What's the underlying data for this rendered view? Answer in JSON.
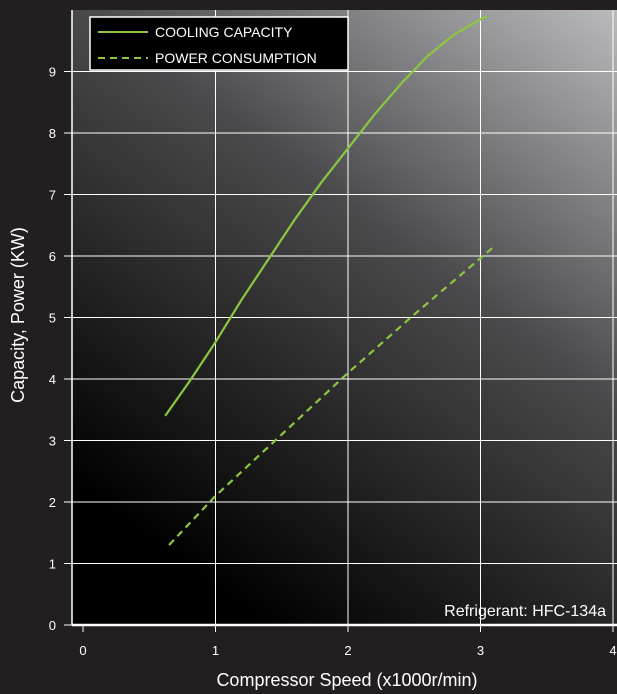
{
  "chart_data": {
    "type": "line",
    "xlabel": "Compressor Speed (x1000r/min)",
    "ylabel": "Capacity, Power (KW)",
    "xlim": [
      0,
      4
    ],
    "ylim": [
      0,
      10
    ],
    "xticks": [
      "0",
      "1",
      "2",
      "3",
      "4"
    ],
    "yticks": [
      "0",
      "1",
      "2",
      "3",
      "4",
      "5",
      "6",
      "7",
      "8",
      "9"
    ],
    "grid": true,
    "legend_placement": "top-left",
    "annotation": "Refrigerant: HFC-134a",
    "series": [
      {
        "name": "COOLING CAPACITY",
        "style": "solid",
        "color": "#8dc63f",
        "x": [
          0.62,
          0.8,
          1.0,
          1.2,
          1.4,
          1.6,
          1.8,
          2.0,
          2.2,
          2.4,
          2.6,
          2.8,
          3.0,
          3.05
        ],
        "y": [
          3.4,
          3.95,
          4.6,
          5.3,
          5.95,
          6.6,
          7.2,
          7.75,
          8.3,
          8.8,
          9.25,
          9.6,
          9.85,
          9.9
        ]
      },
      {
        "name": "POWER CONSUMPTION",
        "style": "dashed",
        "color": "#8dc63f",
        "x": [
          0.65,
          1.0,
          1.5,
          2.0,
          2.5,
          3.1
        ],
        "y": [
          1.3,
          2.1,
          3.1,
          4.1,
          5.05,
          6.15
        ]
      }
    ]
  },
  "colors": {
    "page_background": "#231f20",
    "plot_gradient_light": "#b9babc",
    "plot_gradient_dark": "#000000",
    "grid": "#ffffff",
    "series": "#8dc63f",
    "text": "#ffffff"
  }
}
